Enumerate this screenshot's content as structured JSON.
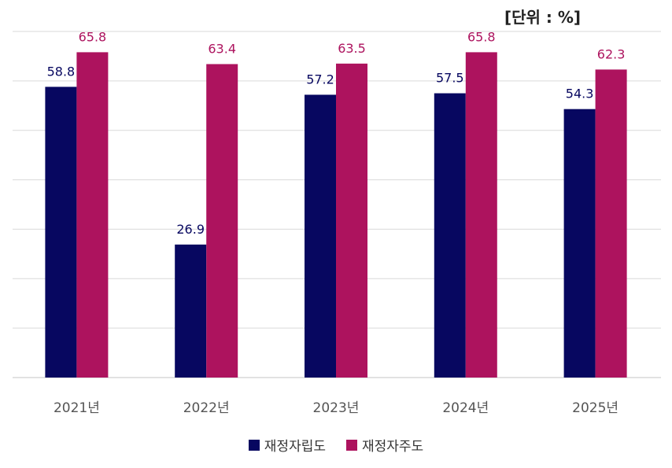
{
  "unit_label": "[단위 : %]",
  "colors": {
    "series_0": "#070760",
    "series_1": "#AD135E",
    "grid": "#d9d9d9",
    "axis_text": "#555555"
  },
  "chart_data": {
    "type": "bar",
    "categories": [
      "2021년",
      "2022년",
      "2023년",
      "2024년",
      "2025년"
    ],
    "series": [
      {
        "name": "재정자립도",
        "values": [
          58.8,
          26.9,
          57.2,
          57.5,
          54.3
        ]
      },
      {
        "name": "재정자주도",
        "values": [
          65.8,
          63.4,
          63.5,
          65.8,
          62.3
        ]
      }
    ],
    "ylim": [
      0,
      70
    ],
    "grid": true,
    "legend_position": "bottom"
  }
}
